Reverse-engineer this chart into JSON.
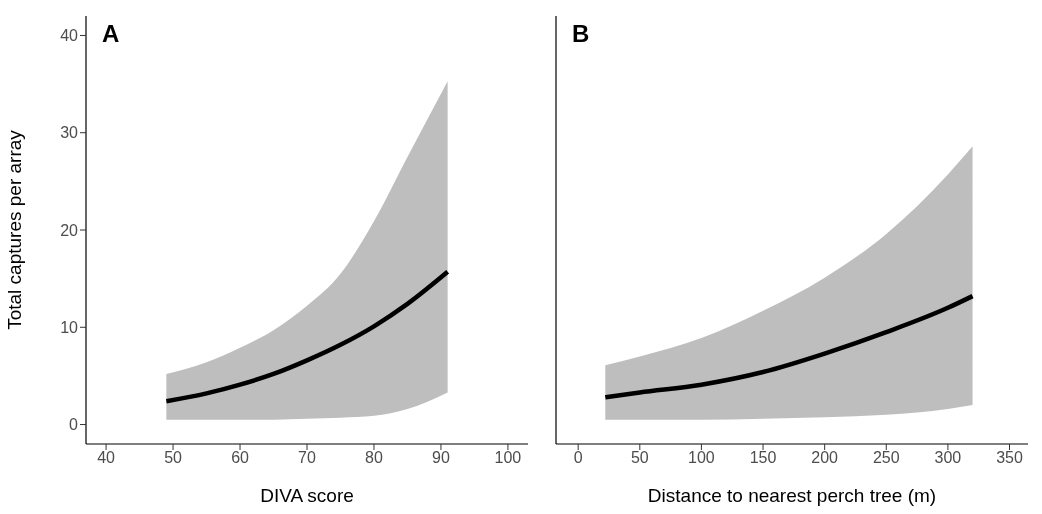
{
  "chart_data": [
    {
      "type": "line",
      "title": "A",
      "xlabel": "DIVA score",
      "ylabel": "Total captures per array",
      "xlim": [
        37,
        103
      ],
      "xticks": [
        40,
        50,
        60,
        70,
        80,
        90,
        100
      ],
      "ylim": [
        -2,
        42
      ],
      "yticks": [
        0,
        10,
        20,
        30,
        40
      ],
      "grid": false,
      "legend": false,
      "marker": "none",
      "line_style": "solid",
      "x": [
        49,
        55,
        60,
        65,
        70,
        75,
        80,
        85,
        91
      ],
      "series": [
        {
          "color": "#000000",
          "values": [
            2.4,
            3.2,
            4.1,
            5.2,
            6.6,
            8.2,
            10.1,
            12.4,
            15.7
          ],
          "lower": [
            0.5,
            0.5,
            0.5,
            0.5,
            0.6,
            0.7,
            0.9,
            1.6,
            3.3
          ],
          "upper": [
            5.2,
            6.4,
            7.9,
            9.7,
            12.2,
            15.5,
            20.9,
            27.5,
            35.3
          ]
        }
      ]
    },
    {
      "type": "line",
      "title": "B",
      "xlabel": "Distance to nearest perch tree (m)",
      "xlim": [
        -18,
        365
      ],
      "xticks": [
        0,
        50,
        100,
        150,
        200,
        250,
        300,
        350
      ],
      "ylim": [
        -2,
        42
      ],
      "yticks": [
        0,
        10,
        20,
        30,
        40
      ],
      "tick_labels": "x",
      "grid": false,
      "legend": false,
      "marker": "none",
      "line_style": "solid",
      "x": [
        22,
        50,
        100,
        150,
        200,
        250,
        300,
        320
      ],
      "series": [
        {
          "color": "#000000",
          "values": [
            2.8,
            3.3,
            4.1,
            5.4,
            7.3,
            9.5,
            12.0,
            13.2
          ],
          "lower": [
            0.5,
            0.5,
            0.5,
            0.6,
            0.75,
            1.0,
            1.6,
            2.0
          ],
          "upper": [
            6.1,
            7.0,
            8.9,
            11.7,
            15.1,
            19.6,
            25.7,
            28.6
          ]
        }
      ]
    }
  ]
}
